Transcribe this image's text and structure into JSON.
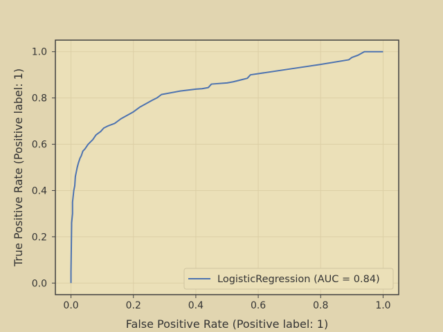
{
  "colors": {
    "figure_bg": "#e1d5b0",
    "axes_bg": "#ebe0b8",
    "grid": "#dccfa6",
    "spine": "#404040",
    "line": "#4c72b0",
    "text": "#333333",
    "legend_bg": "#ebe0b8",
    "legend_border": "#cfc4a0"
  },
  "chart_data": {
    "type": "line",
    "title": "",
    "xlabel": "False Positive Rate (Positive label: 1)",
    "ylabel": "True Positive Rate (Positive label: 1)",
    "xlim": [
      -0.05,
      1.05
    ],
    "ylim": [
      -0.05,
      1.05
    ],
    "xticks": [
      0.0,
      0.2,
      0.4,
      0.6,
      0.8,
      1.0
    ],
    "xtick_labels": [
      "0.0",
      "0.2",
      "0.4",
      "0.6",
      "0.8",
      "1.0"
    ],
    "yticks": [
      0.0,
      0.2,
      0.4,
      0.6,
      0.8,
      1.0
    ],
    "ytick_labels": [
      "0.0",
      "0.2",
      "0.4",
      "0.6",
      "0.8",
      "1.0"
    ],
    "grid": true,
    "legend_position": "lower-right",
    "series": [
      {
        "name": "LogisticRegression (AUC = 0.84)",
        "color": "#4c72b0",
        "x": [
          0.0,
          0.0,
          0.002,
          0.002,
          0.005,
          0.005,
          0.009,
          0.012,
          0.014,
          0.017,
          0.02,
          0.024,
          0.029,
          0.033,
          0.038,
          0.045,
          0.055,
          0.07,
          0.08,
          0.085,
          0.095,
          0.105,
          0.12,
          0.14,
          0.16,
          0.18,
          0.2,
          0.22,
          0.24,
          0.26,
          0.275,
          0.29,
          0.35,
          0.4,
          0.42,
          0.44,
          0.45,
          0.5,
          0.52,
          0.55,
          0.565,
          0.575,
          0.6,
          0.7,
          0.8,
          0.89,
          0.9,
          0.92,
          0.94,
          0.97,
          0.98,
          1.0
        ],
        "y": [
          0.0,
          0.05,
          0.25,
          0.26,
          0.3,
          0.35,
          0.4,
          0.42,
          0.46,
          0.48,
          0.5,
          0.52,
          0.54,
          0.55,
          0.57,
          0.58,
          0.6,
          0.62,
          0.64,
          0.645,
          0.655,
          0.67,
          0.68,
          0.69,
          0.71,
          0.725,
          0.74,
          0.76,
          0.775,
          0.79,
          0.8,
          0.815,
          0.83,
          0.838,
          0.84,
          0.845,
          0.86,
          0.865,
          0.87,
          0.88,
          0.885,
          0.9,
          0.905,
          0.925,
          0.945,
          0.965,
          0.975,
          0.985,
          1.0,
          1.0,
          1.0,
          1.0
        ]
      }
    ]
  }
}
